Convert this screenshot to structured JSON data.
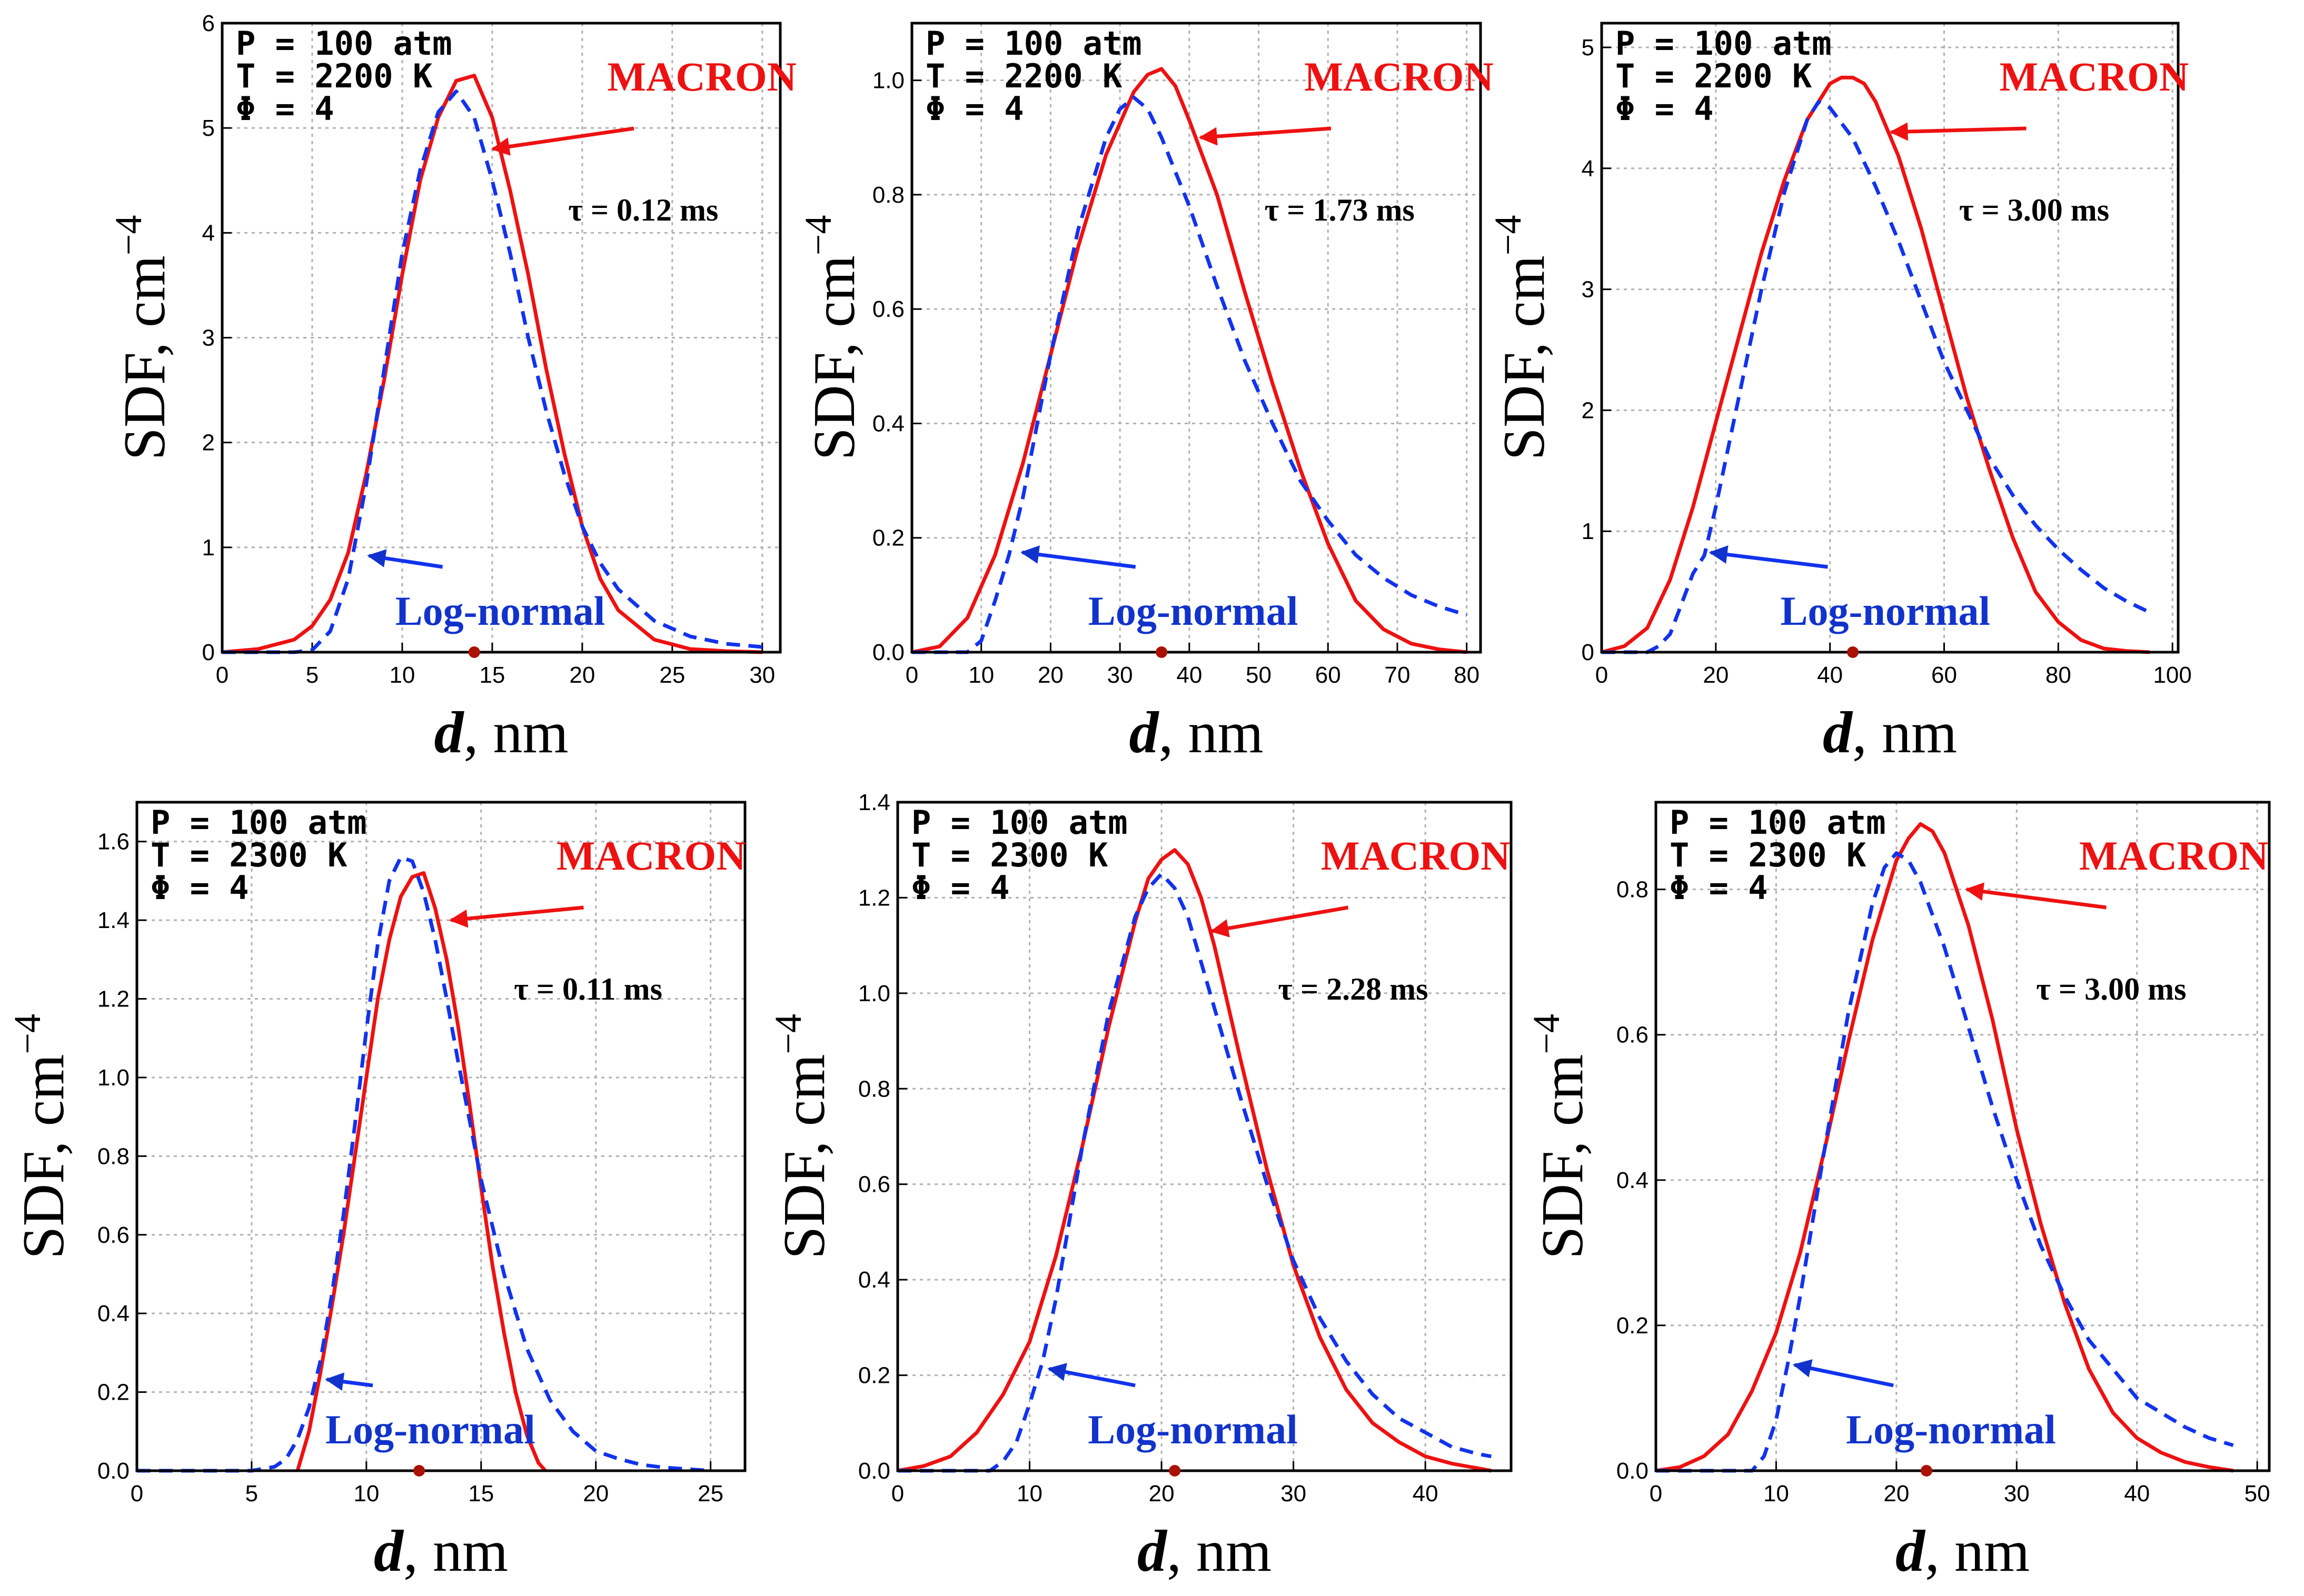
{
  "colors": {
    "macron": "#ee1111",
    "lognormal": "#1133ee",
    "grid": "#b0b0b0",
    "frame": "#000000",
    "marker": "#aa1100"
  },
  "labels": {
    "ylabel_main": "SDF, cm",
    "ylabel_exp": "−4",
    "xlabel_var": "d",
    "xlabel_unit": ", nm",
    "macron": "MACRON",
    "lognormal": "Log-normal"
  },
  "chart_data": [
    {
      "type": "line",
      "params": {
        "P": "P = 100 atm",
        "T": "T = 2200 K",
        "phi": "Φ = 4"
      },
      "tau": "τ = 0.12 ms",
      "xlim": [
        0,
        31
      ],
      "ylim": [
        0,
        6
      ],
      "xticks": [
        "0",
        "5",
        "10",
        "15",
        "20",
        "25",
        "30"
      ],
      "yticks": [
        "0",
        "1",
        "2",
        "3",
        "4",
        "5",
        "6"
      ],
      "xtick_values": [
        0,
        5,
        10,
        15,
        20,
        25,
        30
      ],
      "ytick_values": [
        0,
        1,
        2,
        3,
        4,
        5,
        6
      ],
      "peak_marker_x": 14.0,
      "series": [
        {
          "name": "MACRON",
          "style": "solid",
          "x": [
            0,
            2,
            4,
            5,
            6,
            7,
            8,
            9,
            10,
            11,
            12,
            13,
            14,
            15,
            16,
            17,
            18,
            19,
            20,
            21,
            22,
            24,
            26,
            28,
            30
          ],
          "y": [
            0,
            0.03,
            0.12,
            0.25,
            0.5,
            0.95,
            1.7,
            2.6,
            3.6,
            4.5,
            5.1,
            5.45,
            5.5,
            5.1,
            4.4,
            3.6,
            2.7,
            1.9,
            1.2,
            0.7,
            0.4,
            0.12,
            0.03,
            0.01,
            0
          ]
        },
        {
          "name": "Log-normal",
          "style": "dashed",
          "x": [
            0,
            4,
            5,
            6,
            7,
            8,
            9,
            10,
            11,
            12,
            13,
            14,
            15,
            16,
            17,
            18,
            19,
            20,
            21,
            22,
            24,
            26,
            28,
            30
          ],
          "y": [
            0,
            0,
            0.02,
            0.2,
            0.7,
            1.6,
            2.7,
            3.8,
            4.6,
            5.15,
            5.35,
            5.1,
            4.5,
            3.8,
            3.0,
            2.3,
            1.7,
            1.2,
            0.85,
            0.6,
            0.3,
            0.15,
            0.08,
            0.05
          ]
        }
      ],
      "annotation_tip": {
        "macron": [
          14.8,
          4.8
        ],
        "lognormal": [
          7.8,
          0.95
        ]
      }
    },
    {
      "type": "line",
      "params": {
        "P": "P = 100 atm",
        "T": "T = 2200 K",
        "phi": "Φ = 4"
      },
      "tau": "τ = 1.73 ms",
      "xlim": [
        0,
        82
      ],
      "ylim": [
        0,
        1.1
      ],
      "xticks": [
        "0",
        "10",
        "20",
        "30",
        "40",
        "50",
        "60",
        "70",
        "80"
      ],
      "yticks": [
        "0.0",
        "0.2",
        "0.4",
        "0.6",
        "0.8",
        "1.0"
      ],
      "xtick_values": [
        0,
        10,
        20,
        30,
        40,
        50,
        60,
        70,
        80
      ],
      "ytick_values": [
        0,
        0.2,
        0.4,
        0.6,
        0.8,
        1.0
      ],
      "peak_marker_x": 36,
      "series": [
        {
          "name": "MACRON",
          "style": "solid",
          "x": [
            0,
            4,
            8,
            12,
            16,
            20,
            24,
            28,
            32,
            34,
            36,
            38,
            40,
            44,
            48,
            52,
            56,
            60,
            64,
            68,
            72,
            76,
            80
          ],
          "y": [
            0,
            0.01,
            0.06,
            0.17,
            0.33,
            0.52,
            0.71,
            0.87,
            0.98,
            1.01,
            1.02,
            0.99,
            0.93,
            0.8,
            0.63,
            0.47,
            0.32,
            0.19,
            0.09,
            0.04,
            0.015,
            0.005,
            0
          ]
        },
        {
          "name": "Log-normal",
          "style": "dashed",
          "x": [
            0,
            8,
            10,
            12,
            14,
            16,
            20,
            24,
            28,
            30,
            32,
            34,
            36,
            40,
            44,
            48,
            52,
            56,
            60,
            64,
            68,
            72,
            76,
            80
          ],
          "y": [
            0,
            0,
            0.02,
            0.09,
            0.17,
            0.27,
            0.52,
            0.74,
            0.9,
            0.95,
            0.97,
            0.95,
            0.9,
            0.78,
            0.64,
            0.51,
            0.4,
            0.3,
            0.23,
            0.17,
            0.13,
            0.1,
            0.08,
            0.065
          ]
        }
      ],
      "annotation_tip": {
        "macron": [
          41,
          0.9
        ],
        "lognormal": [
          15,
          0.18
        ]
      }
    },
    {
      "type": "line",
      "params": {
        "P": "P = 100 atm",
        "T": "T = 2200 K",
        "phi": "Φ = 4"
      },
      "tau": "τ = 3.00 ms",
      "xlim": [
        0,
        101
      ],
      "ylim": [
        0,
        5.2
      ],
      "xticks": [
        "0",
        "20",
        "40",
        "60",
        "80",
        "100"
      ],
      "yticks": [
        "0",
        "1",
        "2",
        "3",
        "4",
        "5"
      ],
      "xtick_values": [
        0,
        20,
        40,
        60,
        80,
        100
      ],
      "ytick_values": [
        0,
        1,
        2,
        3,
        4,
        5
      ],
      "peak_marker_x": 44,
      "series": [
        {
          "name": "MACRON",
          "style": "solid",
          "x": [
            0,
            4,
            8,
            12,
            16,
            20,
            24,
            28,
            32,
            36,
            40,
            42,
            44,
            46,
            48,
            52,
            56,
            60,
            64,
            68,
            72,
            76,
            80,
            84,
            88,
            92,
            96
          ],
          "y": [
            0,
            0.05,
            0.2,
            0.6,
            1.2,
            1.9,
            2.6,
            3.3,
            3.9,
            4.4,
            4.7,
            4.75,
            4.75,
            4.7,
            4.55,
            4.1,
            3.5,
            2.8,
            2.1,
            1.5,
            0.95,
            0.5,
            0.25,
            0.1,
            0.03,
            0.01,
            0
          ]
        },
        {
          "name": "Log-normal",
          "style": "dashed",
          "x": [
            0,
            8,
            10,
            12,
            14,
            16,
            18,
            20,
            24,
            28,
            32,
            36,
            38,
            40,
            44,
            48,
            52,
            56,
            60,
            64,
            68,
            72,
            76,
            80,
            84,
            88,
            92,
            96
          ],
          "y": [
            0,
            0,
            0.05,
            0.15,
            0.4,
            0.65,
            0.8,
            1.2,
            2.1,
            3.0,
            3.8,
            4.4,
            4.55,
            4.5,
            4.25,
            3.85,
            3.4,
            2.9,
            2.4,
            2.0,
            1.6,
            1.3,
            1.05,
            0.85,
            0.68,
            0.53,
            0.42,
            0.33
          ]
        }
      ],
      "annotation_tip": {
        "macron": [
          50,
          4.3
        ],
        "lognormal": [
          18,
          0.85
        ]
      }
    },
    {
      "type": "line",
      "params": {
        "P": "P = 100 atm",
        "T": "T = 2300 K",
        "phi": "Φ = 4"
      },
      "tau": "τ = 0.11 ms",
      "xlim": [
        0,
        26.5
      ],
      "ylim": [
        0,
        1.7
      ],
      "xticks": [
        "0",
        "5",
        "10",
        "15",
        "20",
        "25"
      ],
      "yticks": [
        "0.0",
        "0.2",
        "0.4",
        "0.6",
        "0.8",
        "1.0",
        "1.2",
        "1.4",
        "1.6"
      ],
      "xtick_values": [
        0,
        5,
        10,
        15,
        20,
        25
      ],
      "ytick_values": [
        0,
        0.2,
        0.4,
        0.6,
        0.8,
        1.0,
        1.2,
        1.4,
        1.6
      ],
      "peak_marker_x": 12.3,
      "series": [
        {
          "name": "MACRON",
          "style": "solid",
          "x": [
            7,
            7.5,
            8,
            8.5,
            9,
            9.5,
            10,
            10.5,
            11,
            11.5,
            12,
            12.5,
            13,
            13.5,
            14,
            14.5,
            15,
            15.5,
            16,
            16.5,
            17,
            17.5,
            17.8
          ],
          "y": [
            0,
            0.1,
            0.25,
            0.42,
            0.6,
            0.8,
            1.0,
            1.2,
            1.35,
            1.46,
            1.51,
            1.52,
            1.43,
            1.3,
            1.13,
            0.93,
            0.72,
            0.52,
            0.35,
            0.2,
            0.09,
            0.02,
            0
          ]
        },
        {
          "name": "Log-normal",
          "style": "dashed",
          "x": [
            0,
            5,
            6,
            6.5,
            7,
            7.5,
            8,
            8.5,
            9,
            9.5,
            10,
            10.5,
            11,
            11.5,
            12,
            12.5,
            13,
            13.5,
            14,
            15,
            16,
            17,
            18,
            19,
            20,
            21,
            22,
            23,
            24,
            25
          ],
          "y": [
            0,
            0,
            0.01,
            0.03,
            0.08,
            0.16,
            0.28,
            0.45,
            0.65,
            0.88,
            1.12,
            1.34,
            1.5,
            1.56,
            1.55,
            1.47,
            1.35,
            1.2,
            1.04,
            0.74,
            0.5,
            0.31,
            0.18,
            0.1,
            0.05,
            0.03,
            0.015,
            0.008,
            0.004,
            0
          ]
        }
      ],
      "annotation_tip": {
        "macron": [
          13.5,
          1.4
        ],
        "lognormal": [
          8,
          0.24
        ]
      }
    },
    {
      "type": "line",
      "params": {
        "P": "P = 100 atm",
        "T": "T = 2300 K",
        "phi": "Φ = 4"
      },
      "tau": "τ = 2.28 ms",
      "xlim": [
        0,
        46.5
      ],
      "ylim": [
        0,
        1.4
      ],
      "xticks": [
        "0",
        "10",
        "20",
        "30",
        "40"
      ],
      "yticks": [
        "0.0",
        "0.2",
        "0.4",
        "0.6",
        "0.8",
        "1.0",
        "1.2",
        "1.4"
      ],
      "xtick_values": [
        0,
        10,
        20,
        30,
        40
      ],
      "ytick_values": [
        0,
        0.2,
        0.4,
        0.6,
        0.8,
        1.0,
        1.2,
        1.4
      ],
      "peak_marker_x": 21,
      "series": [
        {
          "name": "MACRON",
          "style": "solid",
          "x": [
            0,
            2,
            4,
            6,
            8,
            10,
            12,
            14,
            16,
            18,
            19,
            20,
            21,
            22,
            23,
            24,
            26,
            28,
            30,
            32,
            34,
            36,
            38,
            40,
            42,
            44,
            45
          ],
          "y": [
            0,
            0.01,
            0.03,
            0.08,
            0.16,
            0.27,
            0.45,
            0.68,
            0.93,
            1.15,
            1.24,
            1.28,
            1.3,
            1.27,
            1.2,
            1.1,
            0.86,
            0.63,
            0.43,
            0.28,
            0.17,
            0.1,
            0.06,
            0.03,
            0.015,
            0.005,
            0
          ]
        },
        {
          "name": "Log-normal",
          "style": "dashed",
          "x": [
            0,
            7,
            8,
            9,
            10,
            11,
            12,
            13,
            14,
            16,
            18,
            19,
            20,
            21,
            22,
            24,
            26,
            28,
            30,
            32,
            34,
            36,
            38,
            40,
            42,
            44,
            45
          ],
          "y": [
            0,
            0,
            0.02,
            0.06,
            0.14,
            0.23,
            0.36,
            0.52,
            0.68,
            0.96,
            1.16,
            1.22,
            1.25,
            1.22,
            1.16,
            0.97,
            0.78,
            0.6,
            0.44,
            0.32,
            0.23,
            0.16,
            0.11,
            0.08,
            0.05,
            0.035,
            0.03
          ]
        }
      ],
      "annotation_tip": {
        "macron": [
          23.5,
          1.13
        ],
        "lognormal": [
          11,
          0.22
        ]
      }
    },
    {
      "type": "line",
      "params": {
        "P": "P = 100 atm",
        "T": "T = 2300 K",
        "phi": "Φ = 4"
      },
      "tau": "τ = 3.00 ms",
      "xlim": [
        0,
        51
      ],
      "ylim": [
        0,
        0.92
      ],
      "xticks": [
        "0",
        "10",
        "20",
        "30",
        "40",
        "50"
      ],
      "yticks": [
        "0.0",
        "0.2",
        "0.4",
        "0.6",
        "0.8"
      ],
      "xtick_values": [
        0,
        10,
        20,
        30,
        40,
        50
      ],
      "ytick_values": [
        0,
        0.2,
        0.4,
        0.6,
        0.8
      ],
      "peak_marker_x": 22.5,
      "series": [
        {
          "name": "MACRON",
          "style": "solid",
          "x": [
            0,
            2,
            4,
            6,
            8,
            10,
            12,
            14,
            16,
            18,
            20,
            21,
            22,
            23,
            24,
            26,
            28,
            30,
            32,
            34,
            36,
            38,
            40,
            42,
            44,
            46,
            48
          ],
          "y": [
            0,
            0.005,
            0.02,
            0.05,
            0.11,
            0.19,
            0.3,
            0.44,
            0.59,
            0.73,
            0.84,
            0.87,
            0.89,
            0.88,
            0.85,
            0.75,
            0.62,
            0.47,
            0.34,
            0.23,
            0.14,
            0.08,
            0.045,
            0.025,
            0.012,
            0.005,
            0
          ]
        },
        {
          "name": "Log-normal",
          "style": "dashed",
          "x": [
            0,
            8,
            9,
            10,
            11,
            12,
            13,
            14,
            16,
            18,
            19,
            20,
            21,
            22,
            24,
            26,
            28,
            30,
            32,
            34,
            36,
            38,
            40,
            42,
            44,
            46,
            48
          ],
          "y": [
            0,
            0,
            0.02,
            0.07,
            0.15,
            0.24,
            0.34,
            0.44,
            0.63,
            0.78,
            0.83,
            0.85,
            0.84,
            0.81,
            0.72,
            0.61,
            0.5,
            0.4,
            0.31,
            0.24,
            0.18,
            0.14,
            0.1,
            0.08,
            0.06,
            0.045,
            0.035
          ]
        }
      ],
      "annotation_tip": {
        "macron": [
          25.5,
          0.8
        ],
        "lognormal": [
          11,
          0.15
        ]
      }
    }
  ]
}
